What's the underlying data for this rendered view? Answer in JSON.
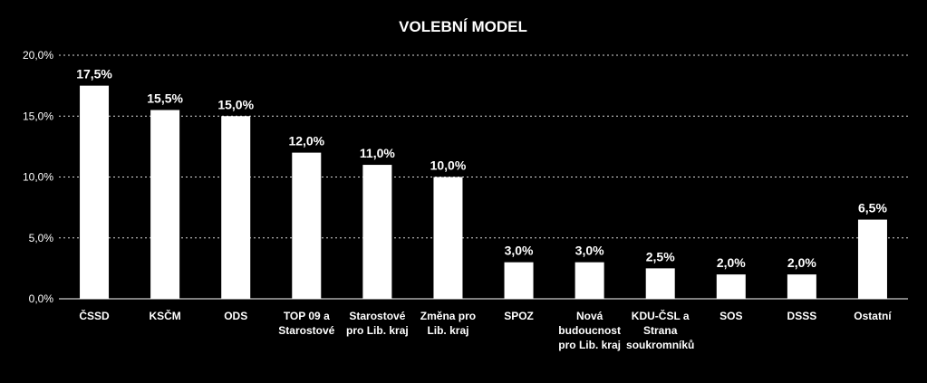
{
  "chart_data": {
    "type": "bar",
    "title": "VOLEBNÍ MODEL",
    "xlabel": "",
    "ylabel": "",
    "ylim": [
      0,
      20
    ],
    "yticks": [
      "0,0%",
      "5,0%",
      "10,0%",
      "15,0%",
      "20,0%"
    ],
    "grid": true,
    "categories": [
      [
        "ČSSD"
      ],
      [
        "KSČM"
      ],
      [
        "ODS"
      ],
      [
        "TOP 09 a",
        "Starostové"
      ],
      [
        "Starostové",
        "pro Lib. kraj"
      ],
      [
        "Změna pro",
        "Lib. kraj"
      ],
      [
        "SPOZ"
      ],
      [
        "Nová",
        "budoucnost",
        "pro Lib. kraj"
      ],
      [
        "KDU-ČSL a",
        "Strana",
        "soukromníků"
      ],
      [
        "SOS"
      ],
      [
        "DSSS"
      ],
      [
        "Ostatní"
      ]
    ],
    "values": [
      17.5,
      15.5,
      15.0,
      12.0,
      11.0,
      10.0,
      3.0,
      3.0,
      2.5,
      2.0,
      2.0,
      6.5
    ],
    "data_labels": [
      "17,5%",
      "15,5%",
      "15,0%",
      "12,0%",
      "11,0%",
      "10,0%",
      "3,0%",
      "3,0%",
      "2,5%",
      "2,0%",
      "2,0%",
      "6,5%"
    ],
    "colors": {
      "background": "#000000",
      "bar": "#ffffff",
      "text": "#ffffff"
    }
  }
}
